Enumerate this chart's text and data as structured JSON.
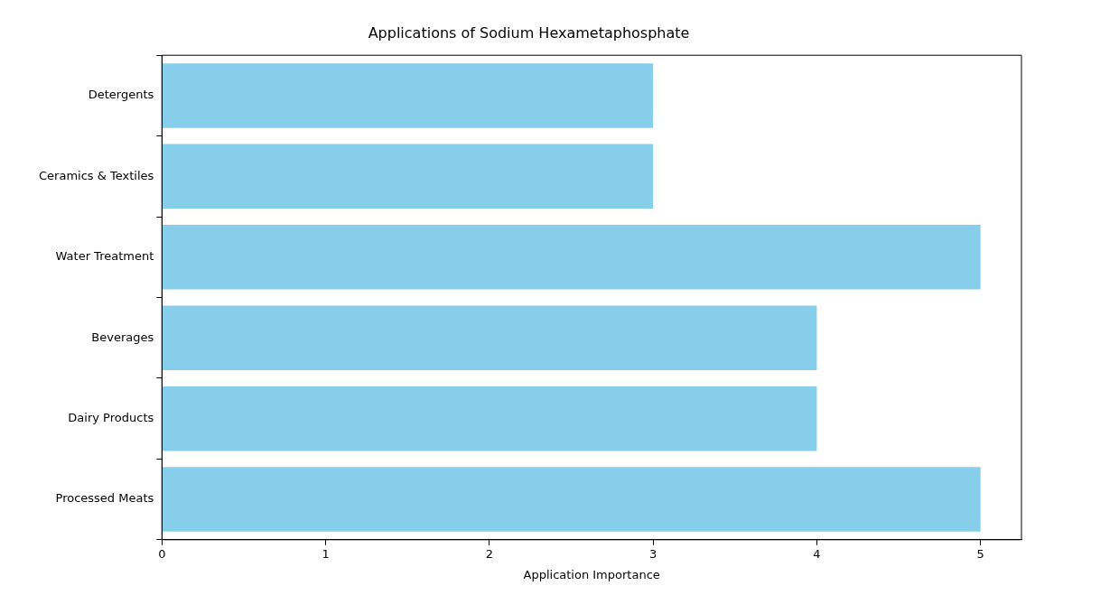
{
  "chart_data": {
    "type": "bar",
    "orientation": "horizontal",
    "title": "Applications of Sodium Hexametaphosphate",
    "xlabel": "Application Importance",
    "categories": [
      "Detergents",
      "Ceramics & Textiles",
      "Water Treatment",
      "Beverages",
      "Dairy Products",
      "Processed Meats"
    ],
    "values": [
      3,
      3,
      5,
      4,
      4,
      5
    ],
    "color": "#87ceeb",
    "xlim": [
      0,
      5.25
    ],
    "xticks": [
      0,
      1,
      2,
      3,
      4,
      5
    ],
    "grid": false,
    "legend": false
  }
}
